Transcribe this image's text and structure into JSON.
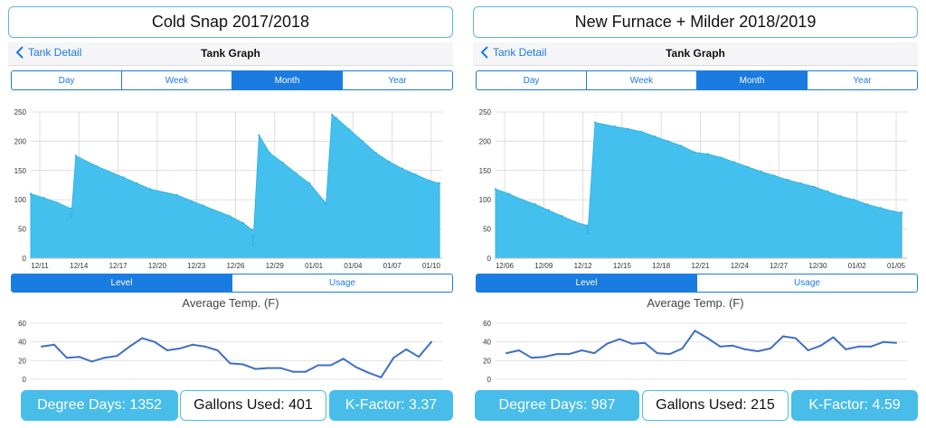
{
  "theme": {
    "accent": "#1a7be0",
    "area_fill": "#44c0ee",
    "line": "#3f6fc4",
    "stat_fill": "#48bdea"
  },
  "panels": [
    {
      "title": "Cold Snap 2017/2018",
      "nav": {
        "back_label": "Tank Detail",
        "title": "Tank Graph",
        "back_icon": "chevron-left-icon"
      },
      "period_tabs": [
        {
          "label": "Day",
          "active": false
        },
        {
          "label": "Week",
          "active": false
        },
        {
          "label": "Month",
          "active": true
        },
        {
          "label": "Year",
          "active": false
        }
      ],
      "metric_tabs": [
        {
          "label": "Level",
          "active": true
        },
        {
          "label": "Usage",
          "active": false
        }
      ],
      "temp_title": "Average Temp. (F)",
      "stats": {
        "degree_days": "Degree Days: 1352",
        "gallons_used": "Gallons Used: 401",
        "k_factor": "K-Factor: 3.37"
      }
    },
    {
      "title": "New Furnace + Milder 2018/2019",
      "nav": {
        "back_label": "Tank Detail",
        "title": "Tank Graph",
        "back_icon": "chevron-left-icon"
      },
      "period_tabs": [
        {
          "label": "Day",
          "active": false
        },
        {
          "label": "Week",
          "active": false
        },
        {
          "label": "Month",
          "active": true
        },
        {
          "label": "Year",
          "active": false
        }
      ],
      "metric_tabs": [
        {
          "label": "Level",
          "active": true
        },
        {
          "label": "Usage",
          "active": false
        }
      ],
      "temp_title": "Average Temp. (F)",
      "stats": {
        "degree_days": "Degree Days: 987",
        "gallons_used": "Gallons Used: 215",
        "k_factor": "K-Factor: 4.59"
      }
    }
  ],
  "chart_data": [
    {
      "type": "area",
      "title": "",
      "xlabel": "",
      "ylabel": "",
      "ylim": [
        0,
        250
      ],
      "yticks": [
        0,
        50,
        100,
        150,
        200,
        250
      ],
      "xlim": [
        0,
        31
      ],
      "x_tick_labels": [
        "12/11",
        "12/14",
        "12/17",
        "12/20",
        "12/23",
        "12/26",
        "12/29",
        "01/01",
        "01/04",
        "01/07",
        "01/10"
      ],
      "grid": true,
      "series": [
        {
          "x": [
            0,
            1,
            2,
            3,
            3.05,
            3.4,
            5,
            7,
            8,
            9,
            11,
            13,
            15,
            16,
            16.7,
            16.75,
            17.2,
            18,
            19,
            20,
            21,
            22.2,
            22.25,
            22.7,
            23,
            24,
            25,
            26,
            27,
            28,
            29,
            30,
            30.8
          ],
          "y": [
            110,
            103,
            95,
            85,
            70,
            175,
            157,
            138,
            128,
            118,
            108,
            90,
            72,
            60,
            48,
            22,
            210,
            180,
            163,
            145,
            128,
            95,
            92,
            245,
            240,
            220,
            200,
            180,
            165,
            153,
            143,
            133,
            128
          ]
        }
      ]
    },
    {
      "type": "area",
      "title": "",
      "xlabel": "",
      "ylabel": "",
      "ylim": [
        0,
        250
      ],
      "yticks": [
        0,
        50,
        100,
        150,
        200,
        250
      ],
      "xlim": [
        0,
        31
      ],
      "x_tick_labels": [
        "12/06",
        "12/09",
        "12/12",
        "12/15",
        "12/18",
        "12/21",
        "12/24",
        "12/27",
        "12/30",
        "01/02",
        "01/05"
      ],
      "grid": true,
      "series": [
        {
          "x": [
            0,
            1,
            2,
            3,
            4,
            5,
            6,
            6.9,
            6.95,
            7.5,
            9,
            10,
            11,
            12,
            13,
            14,
            15,
            16,
            17,
            18,
            19,
            20,
            21,
            22,
            23,
            24,
            25,
            26,
            27,
            28,
            29,
            30,
            30.6
          ],
          "y": [
            118,
            110,
            100,
            92,
            82,
            72,
            62,
            56,
            42,
            232,
            225,
            221,
            216,
            208,
            200,
            192,
            181,
            178,
            172,
            164,
            156,
            148,
            141,
            134,
            128,
            122,
            114,
            106,
            100,
            92,
            86,
            80,
            78
          ]
        }
      ]
    },
    {
      "type": "line",
      "title": "Average Temp. (F)",
      "ylim": [
        0,
        60
      ],
      "yticks": [
        0,
        20,
        40,
        60
      ],
      "grid": true,
      "series": [
        {
          "values": [
            35,
            37,
            23,
            24,
            19,
            23,
            25,
            35,
            44,
            40,
            31,
            33,
            37,
            35,
            31,
            17,
            16,
            11,
            12,
            12,
            8,
            8,
            15,
            15,
            22,
            13,
            7,
            2,
            23,
            32,
            24,
            40
          ]
        }
      ]
    },
    {
      "type": "line",
      "title": "Average Temp. (F)",
      "ylim": [
        0,
        60
      ],
      "yticks": [
        0,
        20,
        40,
        60
      ],
      "grid": true,
      "series": [
        {
          "values": [
            28,
            31,
            23,
            24,
            27,
            27,
            31,
            28,
            38,
            43,
            38,
            39,
            28,
            27,
            33,
            52,
            44,
            35,
            36,
            32,
            30,
            33,
            46,
            44,
            31,
            36,
            45,
            32,
            35,
            35,
            40,
            39
          ]
        }
      ]
    }
  ]
}
